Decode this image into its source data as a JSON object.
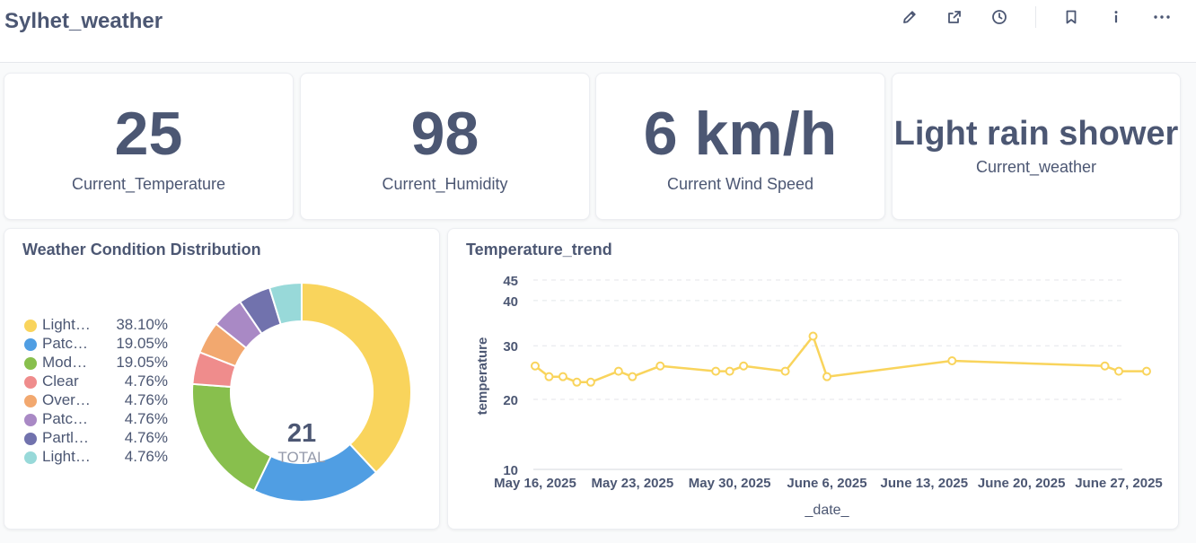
{
  "header": {
    "title": "Sylhet_weather",
    "icons": [
      "pencil-icon",
      "share-icon",
      "history-icon",
      "bookmark-icon",
      "info-icon",
      "more-icon"
    ]
  },
  "scalars": [
    {
      "value": "25",
      "label": "Current_Temperature"
    },
    {
      "value": "98",
      "label": "Current_Humidity"
    },
    {
      "value": "6 km/h",
      "label": "Current Wind Speed"
    },
    {
      "value": "Light rain shower",
      "label": "Current_weather"
    }
  ],
  "donut": {
    "title": "Weather Condition Distribution",
    "total_value": "21",
    "total_label": "TOTAL",
    "legend": [
      {
        "name": "Light…",
        "pct": "38.10%",
        "color": "#f9d45c"
      },
      {
        "name": "Patc…",
        "pct": "19.05%",
        "color": "#509ee3"
      },
      {
        "name": "Mod…",
        "pct": "19.05%",
        "color": "#88bf4d"
      },
      {
        "name": "Clear",
        "pct": "4.76%",
        "color": "#ef8c8c"
      },
      {
        "name": "Overc…",
        "pct": "4.76%",
        "color": "#f2a86f"
      },
      {
        "name": "Patch…",
        "pct": "4.76%",
        "color": "#a989c5"
      },
      {
        "name": "Partly…",
        "pct": "4.76%",
        "color": "#7172ad"
      },
      {
        "name": "Light r…",
        "pct": "4.76%",
        "color": "#98d9d9"
      }
    ]
  },
  "line": {
    "title": "Temperature_trend"
  },
  "chart_data": [
    {
      "type": "pie",
      "title": "Weather Condition Distribution",
      "categories": [
        "Light…",
        "Patc…",
        "Mod…",
        "Clear",
        "Overc…",
        "Patch…",
        "Partly…",
        "Light r…"
      ],
      "values": [
        38.1,
        19.05,
        19.05,
        4.76,
        4.76,
        4.76,
        4.76,
        4.76
      ],
      "colors": [
        "#f9d45c",
        "#509ee3",
        "#88bf4d",
        "#ef8c8c",
        "#f2a86f",
        "#a989c5",
        "#7172ad",
        "#98d9d9"
      ],
      "total": 21,
      "legend": "left"
    },
    {
      "type": "line",
      "title": "Temperature_trend",
      "xlabel": "_date_",
      "ylabel": "temperature",
      "x_ticks": [
        "May 16, 2025",
        "May 23, 2025",
        "May 30, 2025",
        "June 6, 2025",
        "June 13, 2025",
        "June 20, 2025",
        "June 27, 2025"
      ],
      "y_ticks": [
        10,
        20,
        30,
        40,
        45
      ],
      "ylim": [
        10,
        45
      ],
      "y_scale": "sqrt",
      "grid": true,
      "color": "#f9d45c",
      "series": [
        {
          "x": [
            "2025-05-16",
            "2025-05-17",
            "2025-05-18",
            "2025-05-19",
            "2025-05-20",
            "2025-05-22",
            "2025-05-23",
            "2025-05-25",
            "2025-05-29",
            "2025-05-30",
            "2025-05-31",
            "2025-06-03",
            "2025-06-05",
            "2025-06-06",
            "2025-06-15",
            "2025-06-26",
            "2025-06-27",
            "2025-06-29"
          ],
          "y": [
            26,
            24,
            24,
            23,
            23,
            25,
            24,
            26,
            25,
            25,
            26,
            25,
            32,
            24,
            27,
            26,
            25,
            25
          ]
        }
      ]
    }
  ]
}
